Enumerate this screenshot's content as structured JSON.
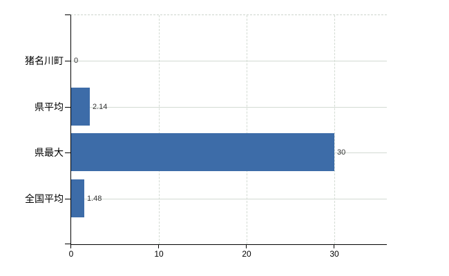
{
  "chart_data": {
    "type": "bar",
    "orientation": "horizontal",
    "title": "",
    "xlabel": "",
    "ylabel": "",
    "categories": [
      "猪名川町",
      "県平均",
      "県最大",
      "全国平均"
    ],
    "values": [
      0,
      2.14,
      30,
      1.48
    ],
    "value_labels": [
      "0",
      "2.14",
      "30",
      "1.48"
    ],
    "xlim": [
      0,
      36
    ],
    "x_ticks": [
      0,
      10,
      20,
      30
    ],
    "x_tick_labels": [
      "0",
      "10",
      "20",
      "30"
    ],
    "grid": true,
    "legend": "none",
    "bar_color": "#3d6ca8",
    "gridline_color": "#d2dad2",
    "axis_color": "#000000",
    "label_color": "#333333",
    "background_color": "#ffffff"
  }
}
